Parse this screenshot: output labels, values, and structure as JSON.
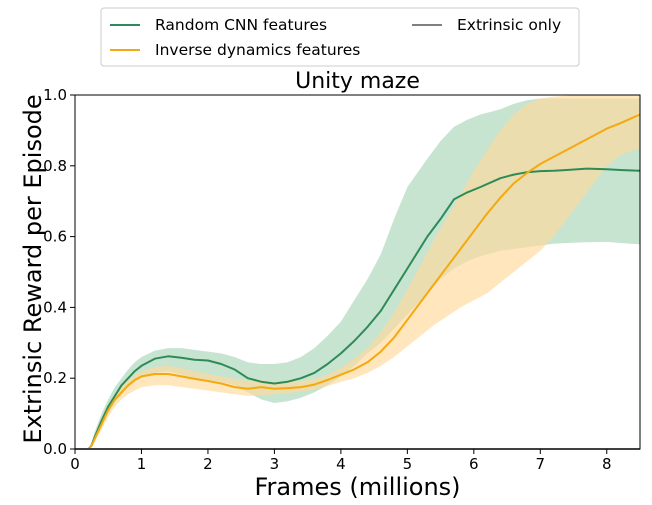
{
  "chart_data": {
    "type": "line",
    "title": "Unity maze",
    "xlabel": "Frames (millions)",
    "ylabel": "Extrinsic Reward per Episode",
    "xlim": [
      0,
      8.5
    ],
    "ylim": [
      0,
      1.0
    ],
    "xticks": [
      "0",
      "1",
      "2",
      "3",
      "4",
      "5",
      "6",
      "7",
      "8"
    ],
    "yticks": [
      "0.0",
      "0.2",
      "0.4",
      "0.6",
      "0.8",
      "1.0"
    ],
    "grid": false,
    "legend_position": "top-center, above plot, two columns",
    "legend_order": [
      "Random CNN features",
      "Extrinsic only",
      "Inverse dynamics features"
    ],
    "series": [
      {
        "name": "Random CNN features",
        "color": "#2e8b57",
        "band_color": "#a9d6b9",
        "x": [
          0.2,
          0.25,
          0.3,
          0.4,
          0.5,
          0.6,
          0.7,
          0.8,
          0.9,
          1.0,
          1.2,
          1.4,
          1.6,
          1.8,
          2.0,
          2.2,
          2.4,
          2.6,
          2.8,
          3.0,
          3.2,
          3.4,
          3.6,
          3.8,
          4.0,
          4.2,
          4.4,
          4.6,
          4.8,
          5.0,
          5.3,
          5.5,
          5.7,
          5.9,
          6.1,
          6.4,
          6.6,
          6.8,
          7.0,
          7.2,
          7.4,
          7.7,
          8.0,
          8.2,
          8.5
        ],
        "y": [
          0.0,
          0.01,
          0.035,
          0.08,
          0.12,
          0.15,
          0.18,
          0.2,
          0.22,
          0.235,
          0.255,
          0.262,
          0.258,
          0.252,
          0.25,
          0.24,
          0.225,
          0.2,
          0.19,
          0.185,
          0.19,
          0.2,
          0.215,
          0.24,
          0.27,
          0.305,
          0.345,
          0.39,
          0.45,
          0.51,
          0.6,
          0.65,
          0.705,
          0.725,
          0.74,
          0.765,
          0.775,
          0.782,
          0.785,
          0.786,
          0.788,
          0.792,
          0.79,
          0.788,
          0.786
        ],
        "lower": [
          0.0,
          0.005,
          0.025,
          0.065,
          0.1,
          0.13,
          0.155,
          0.175,
          0.19,
          0.2,
          0.215,
          0.22,
          0.21,
          0.2,
          0.195,
          0.19,
          0.18,
          0.16,
          0.14,
          0.13,
          0.135,
          0.145,
          0.16,
          0.18,
          0.205,
          0.235,
          0.27,
          0.3,
          0.34,
          0.38,
          0.44,
          0.48,
          0.51,
          0.53,
          0.545,
          0.56,
          0.565,
          0.57,
          0.575,
          0.58,
          0.582,
          0.584,
          0.585,
          0.582,
          0.578
        ],
        "upper": [
          0.0,
          0.02,
          0.05,
          0.1,
          0.14,
          0.175,
          0.2,
          0.225,
          0.245,
          0.26,
          0.278,
          0.285,
          0.285,
          0.28,
          0.275,
          0.27,
          0.26,
          0.245,
          0.24,
          0.24,
          0.245,
          0.26,
          0.285,
          0.32,
          0.36,
          0.42,
          0.48,
          0.55,
          0.65,
          0.74,
          0.82,
          0.87,
          0.91,
          0.93,
          0.945,
          0.96,
          0.975,
          0.985,
          0.99,
          0.99,
          0.99,
          0.99,
          0.99,
          0.99,
          0.99
        ]
      },
      {
        "name": "Inverse dynamics features",
        "color": "#f5a810",
        "band_color": "#ffd99a",
        "x": [
          0.2,
          0.25,
          0.3,
          0.4,
          0.5,
          0.6,
          0.7,
          0.8,
          0.9,
          1.0,
          1.2,
          1.4,
          1.6,
          1.8,
          2.0,
          2.2,
          2.4,
          2.6,
          2.8,
          3.0,
          3.2,
          3.4,
          3.6,
          3.8,
          4.0,
          4.2,
          4.4,
          4.6,
          4.8,
          5.0,
          5.2,
          5.4,
          5.6,
          5.8,
          6.0,
          6.2,
          6.4,
          6.6,
          6.8,
          7.0,
          7.2,
          7.4,
          7.6,
          7.8,
          8.0,
          8.2,
          8.5
        ],
        "y": [
          0.0,
          0.01,
          0.03,
          0.07,
          0.11,
          0.14,
          0.16,
          0.18,
          0.195,
          0.205,
          0.212,
          0.212,
          0.205,
          0.198,
          0.192,
          0.185,
          0.175,
          0.17,
          0.175,
          0.17,
          0.172,
          0.175,
          0.182,
          0.195,
          0.21,
          0.225,
          0.245,
          0.275,
          0.315,
          0.365,
          0.415,
          0.465,
          0.515,
          0.565,
          0.615,
          0.665,
          0.71,
          0.75,
          0.78,
          0.805,
          0.825,
          0.845,
          0.865,
          0.885,
          0.905,
          0.92,
          0.945
        ],
        "lower": [
          0.0,
          0.005,
          0.02,
          0.055,
          0.09,
          0.12,
          0.14,
          0.155,
          0.165,
          0.175,
          0.18,
          0.18,
          0.175,
          0.17,
          0.165,
          0.16,
          0.155,
          0.15,
          0.152,
          0.155,
          0.158,
          0.162,
          0.168,
          0.178,
          0.19,
          0.2,
          0.215,
          0.235,
          0.26,
          0.29,
          0.32,
          0.35,
          0.375,
          0.4,
          0.42,
          0.44,
          0.47,
          0.5,
          0.53,
          0.56,
          0.6,
          0.65,
          0.7,
          0.75,
          0.8,
          0.83,
          0.85
        ],
        "upper": [
          0.0,
          0.015,
          0.04,
          0.085,
          0.125,
          0.155,
          0.175,
          0.195,
          0.21,
          0.22,
          0.232,
          0.235,
          0.228,
          0.22,
          0.212,
          0.205,
          0.198,
          0.192,
          0.195,
          0.19,
          0.19,
          0.192,
          0.198,
          0.21,
          0.23,
          0.255,
          0.285,
          0.33,
          0.385,
          0.45,
          0.52,
          0.59,
          0.655,
          0.72,
          0.785,
          0.845,
          0.9,
          0.945,
          0.975,
          0.99,
          0.995,
          0.998,
          1.0,
          1.0,
          1.0,
          1.0,
          1.0
        ]
      },
      {
        "name": "Extrinsic only",
        "color": "#808080",
        "x": [
          0,
          8.5
        ],
        "y": [
          0.0,
          0.0
        ]
      }
    ]
  }
}
